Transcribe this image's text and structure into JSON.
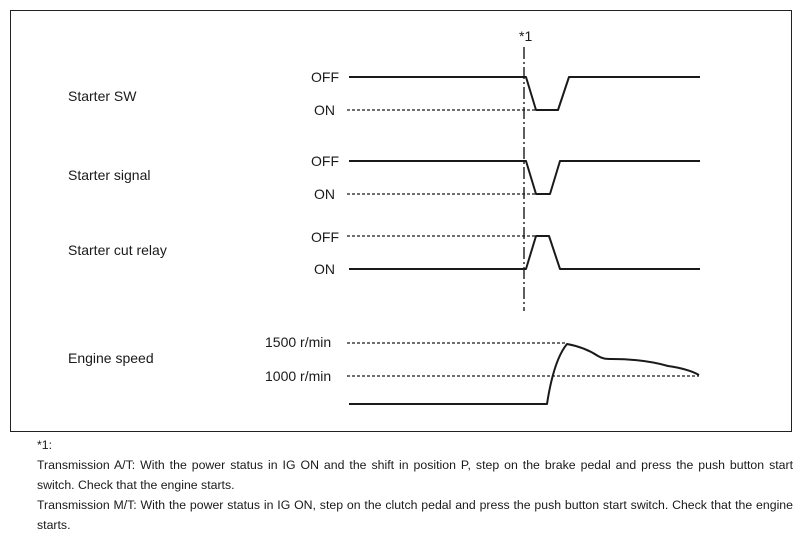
{
  "diagram": {
    "marker_label": "*1",
    "signals": [
      {
        "name": "Starter SW",
        "high_label": "OFF",
        "low_label": "ON"
      },
      {
        "name": "Starter signal",
        "high_label": "OFF",
        "low_label": "ON"
      },
      {
        "name": "Starter cut relay",
        "high_label": "OFF",
        "low_label": "ON"
      }
    ],
    "engine_speed": {
      "name": "Engine speed",
      "level_1500": "1500 r/min",
      "level_1000": "1000 r/min"
    }
  },
  "notes": {
    "heading": "*1:",
    "line_at": "Transmission A/T: With the power status in IG ON and the shift in position P, step on the brake pedal and press the push button start switch. Check that the engine starts.",
    "line_mt": "Transmission M/T: With the power status in IG ON, step on the clutch pedal and press the push button start switch. Check that the engine starts."
  }
}
